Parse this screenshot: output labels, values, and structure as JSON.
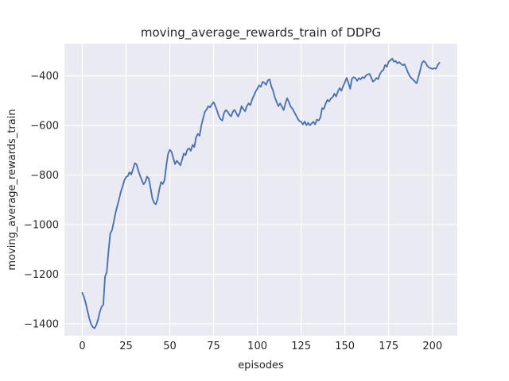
{
  "figure": {
    "title": "moving_average_rewards_train of DDPG",
    "xlabel": "episodes",
    "ylabel": "moving_average_rewards_train"
  },
  "colors": {
    "figure_background": "#ffffff",
    "plot_background": "#eaeaf2",
    "grid": "#ffffff",
    "line": "#4c72b0",
    "text": "#262626"
  },
  "chart_data": {
    "type": "line",
    "title": "moving_average_rewards_train of DDPG",
    "xlabel": "episodes",
    "ylabel": "moving_average_rewards_train",
    "grid": true,
    "legend": false,
    "xlim": [
      -10.2,
      214.2
    ],
    "ylim": [
      -1448,
      -270
    ],
    "xticks": [
      0,
      25,
      50,
      75,
      100,
      125,
      150,
      175,
      200
    ],
    "yticks": [
      -400,
      -600,
      -800,
      -1000,
      -1200,
      -1400
    ],
    "x_start": 0,
    "x_step": 1,
    "series": [
      {
        "name": "moving_average_rewards_train",
        "color": "#4c72b0",
        "values": [
          -1275,
          -1292,
          -1318,
          -1348,
          -1378,
          -1400,
          -1413,
          -1418,
          -1405,
          -1383,
          -1352,
          -1332,
          -1322,
          -1210,
          -1190,
          -1105,
          -1035,
          -1022,
          -988,
          -952,
          -925,
          -898,
          -868,
          -846,
          -822,
          -808,
          -804,
          -788,
          -798,
          -775,
          -752,
          -757,
          -782,
          -802,
          -820,
          -837,
          -828,
          -806,
          -814,
          -852,
          -893,
          -912,
          -918,
          -897,
          -858,
          -828,
          -836,
          -820,
          -762,
          -715,
          -698,
          -706,
          -732,
          -756,
          -742,
          -750,
          -761,
          -738,
          -713,
          -720,
          -698,
          -692,
          -702,
          -678,
          -687,
          -648,
          -634,
          -641,
          -600,
          -572,
          -545,
          -536,
          -522,
          -527,
          -515,
          -506,
          -521,
          -541,
          -562,
          -575,
          -580,
          -549,
          -538,
          -544,
          -556,
          -563,
          -544,
          -537,
          -551,
          -564,
          -548,
          -522,
          -534,
          -543,
          -522,
          -511,
          -518,
          -495,
          -480,
          -463,
          -452,
          -438,
          -444,
          -424,
          -428,
          -436,
          -418,
          -414,
          -443,
          -460,
          -487,
          -505,
          -522,
          -511,
          -524,
          -538,
          -512,
          -490,
          -505,
          -523,
          -532,
          -545,
          -558,
          -572,
          -582,
          -585,
          -596,
          -584,
          -599,
          -589,
          -599,
          -592,
          -585,
          -596,
          -576,
          -580,
          -568,
          -530,
          -533,
          -512,
          -497,
          -503,
          -491,
          -486,
          -472,
          -483,
          -463,
          -449,
          -460,
          -441,
          -426,
          -408,
          -428,
          -452,
          -412,
          -405,
          -409,
          -420,
          -409,
          -414,
          -405,
          -409,
          -399,
          -394,
          -392,
          -406,
          -423,
          -418,
          -408,
          -413,
          -393,
          -381,
          -376,
          -356,
          -363,
          -342,
          -337,
          -330,
          -343,
          -340,
          -349,
          -344,
          -351,
          -357,
          -353,
          -368,
          -386,
          -400,
          -409,
          -416,
          -423,
          -430,
          -404,
          -377,
          -348,
          -340,
          -346,
          -359,
          -366,
          -369,
          -372,
          -369,
          -371,
          -357,
          -347
        ]
      }
    ]
  }
}
